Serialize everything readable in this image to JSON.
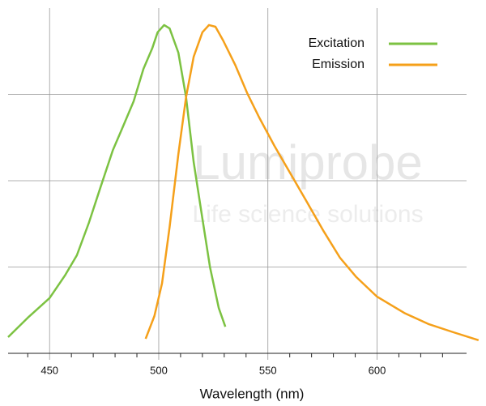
{
  "chart_data": {
    "type": "line",
    "xlabel": "Wavelength (nm)",
    "xlim": [
      431,
      641
    ],
    "ylim": [
      0,
      1
    ],
    "xticks": [
      450,
      500,
      550,
      600
    ],
    "xminorticks": [
      440,
      460,
      470,
      480,
      490,
      510,
      520,
      530,
      540,
      560,
      570,
      580,
      590,
      610,
      620,
      630
    ],
    "yticks": [
      0.25,
      0.5,
      0.75
    ],
    "grid": true,
    "legend": "upper right",
    "watermark": {
      "brand": "Lumiprobe",
      "tagline": "Life science solutions"
    },
    "series": [
      {
        "name": "Excitation",
        "color": "#7cc242",
        "x": [
          431,
          440,
          450,
          457,
          462.5,
          468,
          473.5,
          479,
          483,
          488.5,
          493,
          497,
          499.5,
          502.5,
          505,
          509,
          512.5,
          516,
          520,
          523.5,
          527.5,
          530.5
        ],
        "values": [
          0.047,
          0.103,
          0.16,
          0.225,
          0.284,
          0.378,
          0.484,
          0.589,
          0.648,
          0.73,
          0.824,
          0.883,
          0.93,
          0.951,
          0.941,
          0.871,
          0.742,
          0.554,
          0.39,
          0.249,
          0.131,
          0.077
        ]
      },
      {
        "name": "Emission",
        "color": "#f5a01a",
        "x": [
          494,
          498,
          501.5,
          505,
          509,
          512.5,
          516,
          520,
          523,
          526,
          529.5,
          535,
          540.5,
          546,
          553,
          560.5,
          568,
          575.5,
          583,
          590.5,
          600,
          612.5,
          623.5,
          635,
          646.5
        ],
        "values": [
          0.042,
          0.108,
          0.202,
          0.366,
          0.577,
          0.742,
          0.859,
          0.93,
          0.951,
          0.946,
          0.906,
          0.836,
          0.754,
          0.683,
          0.601,
          0.519,
          0.437,
          0.354,
          0.277,
          0.221,
          0.164,
          0.117,
          0.085,
          0.061,
          0.038
        ]
      }
    ]
  }
}
